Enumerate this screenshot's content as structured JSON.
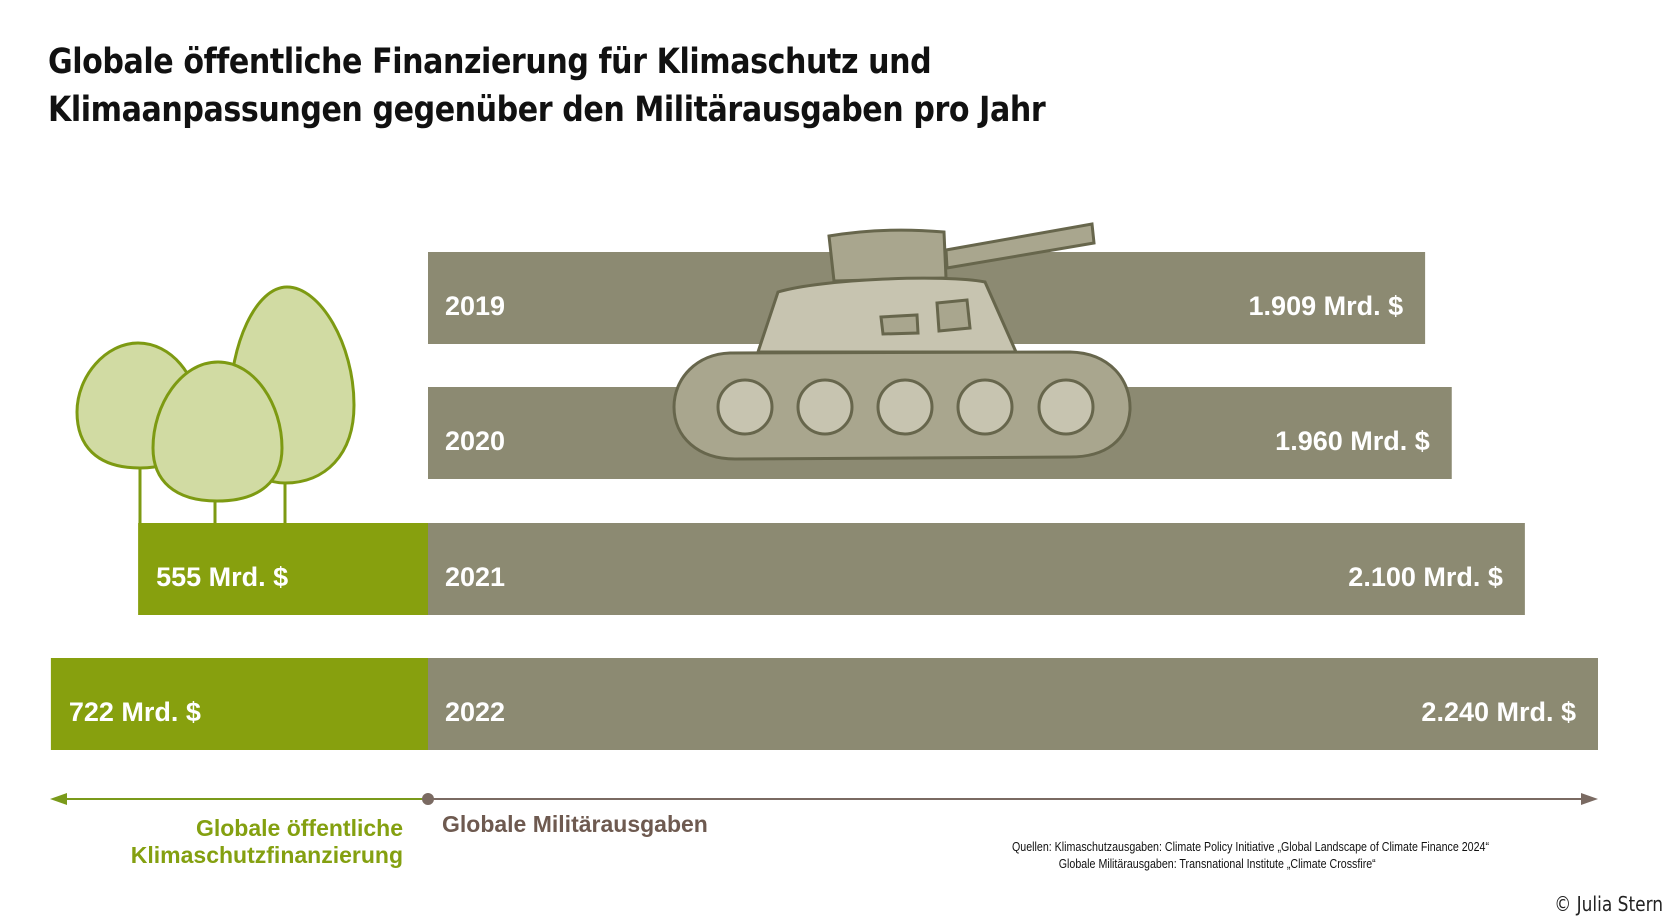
{
  "title_lines": [
    "Globale öffentliche Finanzierung für Klimaschutz und",
    "Klimaanpassungen gegenüber den Militärausgaben pro Jahr"
  ],
  "chart_data": {
    "type": "bar",
    "orientation": "horizontal",
    "unit": "Mrd. $",
    "categories": [
      "2019",
      "2020",
      "2021",
      "2022"
    ],
    "series": [
      {
        "name": "Globale Militärausgaben",
        "color": "#8c8a72",
        "values": [
          1909,
          1960,
          2100,
          2240
        ],
        "value_labels": [
          "1.909 Mrd. $",
          "1.960 Mrd. $",
          "2.100 Mrd. $",
          "2.240 Mrd. $"
        ]
      },
      {
        "name": "Globale öffentliche Klimaschutzfinanzierung",
        "color": "#87a00e",
        "values": [
          null,
          null,
          555,
          722
        ],
        "value_labels": [
          "",
          "",
          "555 Mrd. $",
          "722 Mrd. $"
        ]
      }
    ],
    "axis": {
      "left_label_lines": [
        "Globale öffentliche",
        "Klimaschutzfinanzierung"
      ],
      "right_label": "Globale Militärausgaben",
      "left_color": "#7a9a1a",
      "right_color": "#6e5a50"
    },
    "grid": false,
    "legend": "none"
  },
  "illustrations": [
    "tree-icon",
    "tank-icon"
  ],
  "sources_lines": [
    "Quellen: Klimaschutzausgaben: Climate Policy Initiative „Global Landscape of Climate Finance 2024“",
    "Globale Militärausgaben: Transnational Institute „Climate Crossfire“"
  ],
  "copyright": "© Julia Stern"
}
